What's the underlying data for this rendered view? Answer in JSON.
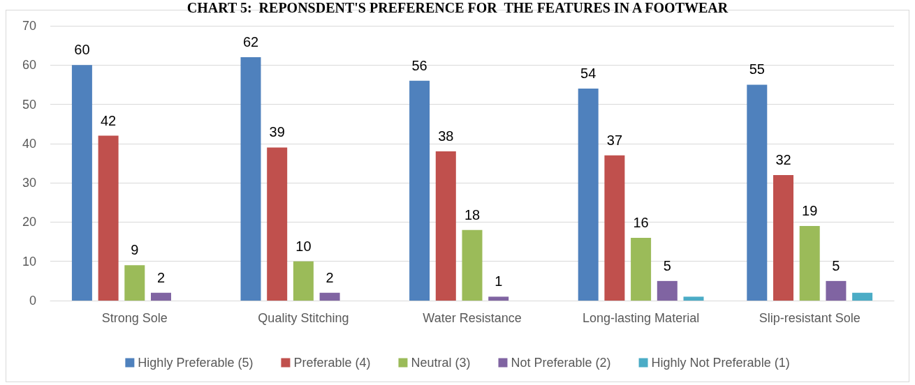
{
  "chart_data": {
    "type": "bar",
    "title": "CHART 5:  REPONSDENT'S PREFERENCE FOR  THE FEATURES IN A FOOTWEAR",
    "categories": [
      "Strong Sole",
      "Quality Stitching",
      "Water Resistance",
      "Long-lasting Material",
      "Slip-resistant Sole"
    ],
    "series": [
      {
        "name": "Highly Preferable (5)",
        "color": "#4f81bd",
        "values": [
          60,
          62,
          56,
          54,
          55
        ],
        "value_labels": [
          "60",
          "62",
          "56",
          "54",
          "55"
        ]
      },
      {
        "name": "Preferable (4)",
        "color": "#c0504d",
        "values": [
          42,
          39,
          38,
          37,
          32
        ],
        "value_labels": [
          "42",
          "39",
          "38",
          "37",
          "32"
        ]
      },
      {
        "name": "Neutral (3)",
        "color": "#9bbb59",
        "values": [
          9,
          10,
          18,
          16,
          19
        ],
        "value_labels": [
          "9",
          "10",
          "18",
          "16",
          "19"
        ]
      },
      {
        "name": "Not Preferable (2)",
        "color": "#8064a2",
        "values": [
          2,
          2,
          1,
          5,
          5
        ],
        "value_labels": [
          "2",
          "2",
          "1",
          "5",
          "5"
        ]
      },
      {
        "name": "Highly Not Preferable (1)",
        "color": "#4bacc6",
        "values": [
          0,
          0,
          0,
          1,
          2
        ],
        "value_labels": [
          null,
          null,
          null,
          null,
          null
        ]
      }
    ],
    "ylim": [
      0,
      70
    ],
    "yticks": [
      0,
      10,
      20,
      30,
      40,
      50,
      60,
      70
    ],
    "grid": "y",
    "legend": "bottom"
  }
}
